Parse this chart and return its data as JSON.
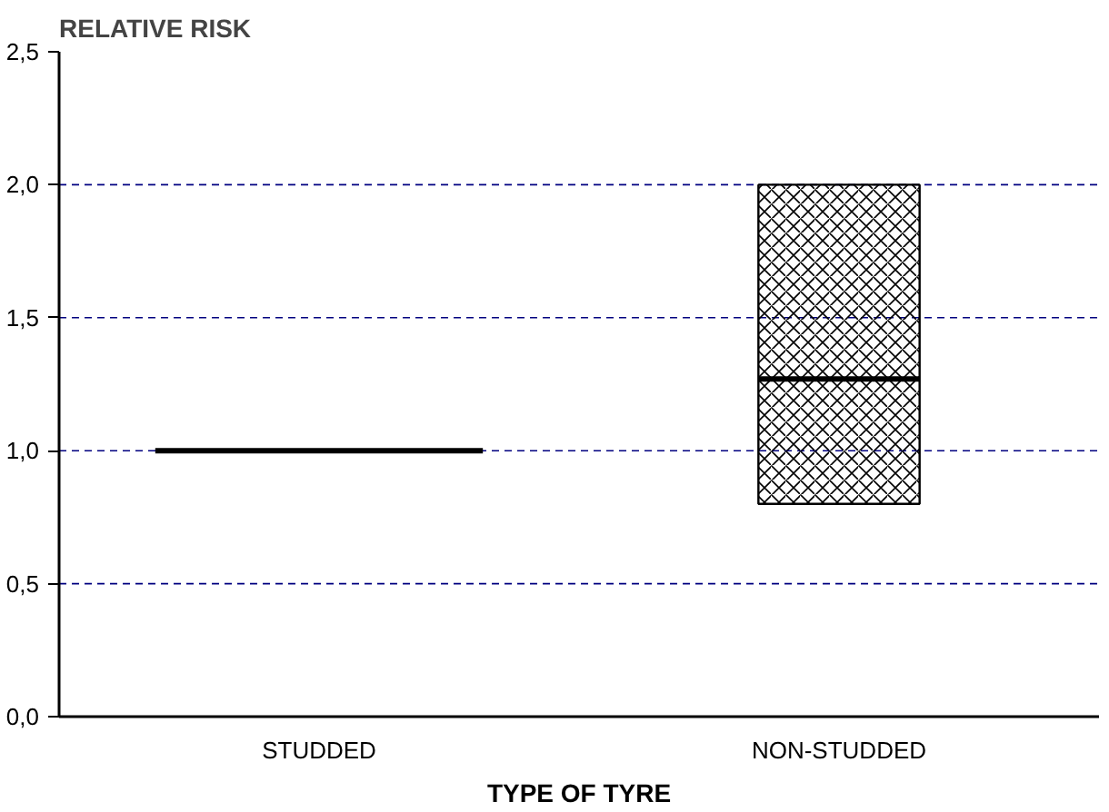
{
  "chart_data": {
    "type": "box",
    "ylabel": "RELATIVE RISK",
    "xlabel": "TYPE OF TYRE",
    "categories": [
      "STUDDED",
      "NON-STUDDED"
    ],
    "boxes": [
      {
        "low": 1.0,
        "q1": 1.0,
        "median": 1.0,
        "q3": 1.0,
        "high": 1.0
      },
      {
        "low": 0.8,
        "q1": 0.8,
        "median": 1.27,
        "q3": 2.0,
        "high": 2.0
      }
    ],
    "color": "#000000",
    "ylim": [
      0,
      2.5
    ],
    "yticks": [
      {
        "value": 0,
        "label": "0,0"
      },
      {
        "value": 0.5,
        "label": "0,5"
      },
      {
        "value": 1,
        "label": "1,0"
      },
      {
        "value": 1.5,
        "label": "1,5"
      },
      {
        "value": 2,
        "label": "2,0"
      },
      {
        "value": 2.5,
        "label": "2,5"
      }
    ],
    "grid": "y"
  }
}
